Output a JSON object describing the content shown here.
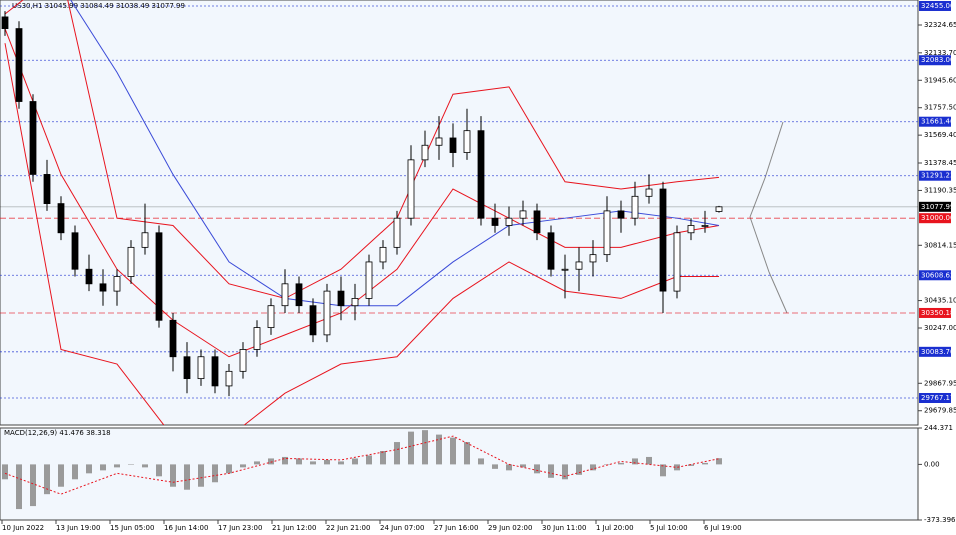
{
  "chart_data": {
    "type": "candlestick",
    "title": "US30,H1 31045.99 31084.49 31038.49 31077.99",
    "x_labels": [
      "10 Jun 2022",
      "13 Jun 19:00",
      "15 Jun 05:00",
      "16 Jun 14:00",
      "17 Jun 23:00",
      "21 Jun 12:00",
      "22 Jun 21:00",
      "24 Jun 07:00",
      "27 Jun 16:00",
      "29 Jun 02:00",
      "30 Jun 11:00",
      "1 Jul 20:00",
      "5 Jul 10:00",
      "6 Jul 19:00"
    ],
    "open": [
      32380,
      32300,
      31800,
      31300,
      31100,
      30900,
      30650,
      30550,
      30500,
      30600,
      30800,
      30900,
      30300,
      30050,
      29900,
      30050,
      29850,
      29950,
      30100,
      30250,
      30400,
      30550,
      30400,
      30200,
      30500,
      30400,
      30450,
      30700,
      30800,
      31000,
      31400,
      31500,
      31550,
      31450,
      31600,
      31000,
      30950,
      31000,
      31050,
      30900,
      30650,
      30650,
      30700,
      30750,
      31050,
      31000,
      31150,
      31200,
      30500,
      30900,
      30950,
      31045.99
    ],
    "high": [
      32420,
      32350,
      31850,
      31400,
      31150,
      30950,
      30750,
      30650,
      30650,
      30850,
      31100,
      30950,
      30350,
      30150,
      30100,
      30100,
      30000,
      30150,
      30300,
      30450,
      30650,
      30600,
      30450,
      30550,
      30600,
      30550,
      30750,
      30850,
      31050,
      31500,
      31600,
      31700,
      31650,
      31750,
      31700,
      31100,
      31080,
      31120,
      31100,
      30950,
      30750,
      30800,
      30850,
      31150,
      31120,
      31250,
      31300,
      31250,
      30950,
      31000,
      31050,
      31084.49
    ],
    "low": [
      32250,
      31750,
      31250,
      31050,
      30850,
      30600,
      30500,
      30400,
      30400,
      30550,
      30750,
      30250,
      29950,
      29800,
      29850,
      29800,
      29780,
      29900,
      30050,
      30200,
      30350,
      30350,
      30150,
      30150,
      30300,
      30300,
      30400,
      30650,
      30750,
      30950,
      31350,
      31400,
      31350,
      31400,
      30950,
      30900,
      30880,
      30950,
      30850,
      30600,
      30450,
      30500,
      30600,
      30700,
      30900,
      30950,
      31100,
      30350,
      30450,
      30850,
      30900,
      31038.49
    ],
    "close": [
      32300,
      31800,
      31300,
      31100,
      30900,
      30650,
      30550,
      30500,
      30600,
      30800,
      30900,
      30300,
      30050,
      29900,
      30050,
      29850,
      29950,
      30100,
      30250,
      30400,
      30550,
      30400,
      30200,
      30500,
      30400,
      30450,
      30700,
      30800,
      31000,
      31400,
      31500,
      31550,
      31450,
      31600,
      31000,
      30950,
      31000,
      31050,
      30900,
      30650,
      30650,
      30700,
      30750,
      31050,
      31000,
      31150,
      31200,
      30500,
      30900,
      30950,
      30950,
      31077.99
    ],
    "indicator_x": [
      0,
      4,
      8,
      12,
      16,
      20,
      24,
      28,
      32,
      36,
      40,
      44,
      48,
      51
    ],
    "indicators": [
      {
        "color": "#e8141e",
        "values": [
          32400,
          32700,
          31000,
          30950,
          30550,
          30450,
          30650,
          31000,
          31850,
          31900,
          31250,
          31200,
          31250,
          31280
        ]
      },
      {
        "color": "#e8141e",
        "values": [
          32300,
          31300,
          30650,
          30300,
          30050,
          30200,
          30350,
          30650,
          31200,
          31000,
          30800,
          30800,
          30900,
          30950
        ]
      },
      {
        "color": "#e8141e",
        "values": [
          32200,
          30100,
          30000,
          29500,
          29500,
          29800,
          30000,
          30050,
          30450,
          30700,
          30500,
          30450,
          30600,
          30600
        ]
      },
      {
        "color": "#3b4bd8",
        "values": [
          33500,
          32600,
          32000,
          31300,
          30700,
          30450,
          30400,
          30400,
          30700,
          30950,
          31000,
          31050,
          31000,
          30950
        ]
      }
    ],
    "levels": [
      {
        "value": 32455,
        "label": "32455.00",
        "color": "#1a2fd0"
      },
      {
        "value": 32083,
        "label": "32083.00",
        "color": "#1a2fd0"
      },
      {
        "value": 31661.46,
        "label": "31661.46",
        "color": "#1a2fd0"
      },
      {
        "value": 31291.23,
        "label": "31291.23",
        "color": "#1a2fd0"
      },
      {
        "value": 31000,
        "label": "31000.00",
        "color": "#e8141e"
      },
      {
        "value": 30608.62,
        "label": "30608.62",
        "color": "#1a2fd0"
      },
      {
        "value": 30350.18,
        "label": "30350.18",
        "color": "#e8141e"
      },
      {
        "value": 30083.7,
        "label": "30083.70",
        "color": "#1a2fd0"
      },
      {
        "value": 29767.17,
        "label": "29767.17",
        "color": "#1a2fd0"
      },
      {
        "value": 31077.99,
        "label": "31077.99",
        "color": "#000000"
      }
    ],
    "ylim": [
      29582,
      32496
    ],
    "yticks": [
      32324.65,
      {
        "value": 32133.7,
        "label": "32133.70"
      },
      {
        "value": 31945.6,
        "label": "31945.60"
      },
      {
        "value": 31757.5,
        "label": "31757.50"
      },
      {
        "value": 31569.4,
        "label": "31569.40"
      },
      31378.45,
      31190.35,
      30814.15,
      {
        "value": 30435.1,
        "label": "30435.10"
      },
      {
        "value": 30247,
        "label": "30247.00"
      },
      29867.95,
      29679.85
    ],
    "macd": {
      "title": "MACD(12,26,9) 41.476 38.318",
      "histogram": [
        -100,
        -300,
        -280,
        -200,
        -150,
        -100,
        -60,
        -40,
        -20,
        0,
        -20,
        -80,
        -150,
        -170,
        -150,
        -120,
        -60,
        -20,
        20,
        40,
        50,
        40,
        20,
        30,
        20,
        40,
        60,
        90,
        150,
        220,
        230,
        200,
        180,
        150,
        40,
        -30,
        -40,
        -20,
        -60,
        -90,
        -100,
        -70,
        -40,
        0,
        10,
        40,
        50,
        -80,
        -40,
        -10,
        10,
        41.476
      ],
      "signal": [
        -60,
        -200,
        -60,
        -120,
        -60,
        40,
        30,
        100,
        190,
        0,
        -80,
        20,
        -20,
        38.318
      ],
      "signal_color": "#e8141e",
      "ylim": [
        -373.396,
        244.371
      ],
      "yticks": [
        244.371,
        {
          "value": 0,
          "label": "0.00"
        },
        -373.396
      ]
    }
  }
}
